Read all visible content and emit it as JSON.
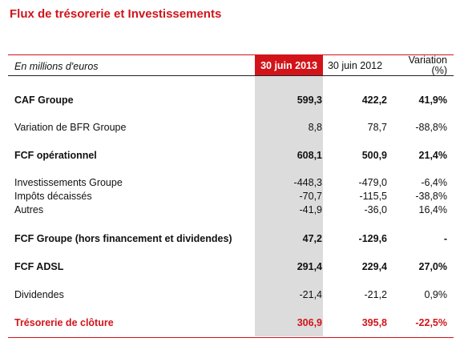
{
  "title": "Flux de trésorerie et Investissements",
  "header": {
    "unit_label": "En millions d'euros",
    "col_2013": "30 juin 2013",
    "col_2012": "30 juin 2012",
    "col_var_line1": "Variation",
    "col_var_line2": "(%)"
  },
  "rows": [
    {
      "label": "CAF Groupe",
      "v2013": "599,3",
      "v2012": "422,2",
      "var": "41,9%"
    },
    {
      "label": "Variation de BFR Groupe",
      "v2013": "8,8",
      "v2012": "78,7",
      "var": "-88,8%"
    },
    {
      "label": "FCF opérationnel",
      "v2013": "608,1",
      "v2012": "500,9",
      "var": "21,4%"
    },
    {
      "label": "Investissements Groupe",
      "v2013": "-448,3",
      "v2012": "-479,0",
      "var": "-6,4%"
    },
    {
      "label": "Impôts décaissés",
      "v2013": "-70,7",
      "v2012": "-115,5",
      "var": "-38,8%"
    },
    {
      "label": "Autres",
      "v2013": "-41,9",
      "v2012": "-36,0",
      "var": "16,4%"
    },
    {
      "label": "FCF Groupe (hors financement et dividendes)",
      "v2013": "47,2",
      "v2012": "-129,6",
      "var": "-"
    },
    {
      "label": "FCF ADSL",
      "v2013": "291,4",
      "v2012": "229,4",
      "var": "27,0%"
    },
    {
      "label": "Dividendes",
      "v2013": "-21,4",
      "v2012": "-21,2",
      "var": "0,9%"
    },
    {
      "label": "Trésorerie de clôture",
      "v2013": "306,9",
      "v2012": "395,8",
      "var": "-22,5%"
    }
  ],
  "colors": {
    "accent": "#d2141a",
    "highlight_column": "#dcdcdc"
  }
}
